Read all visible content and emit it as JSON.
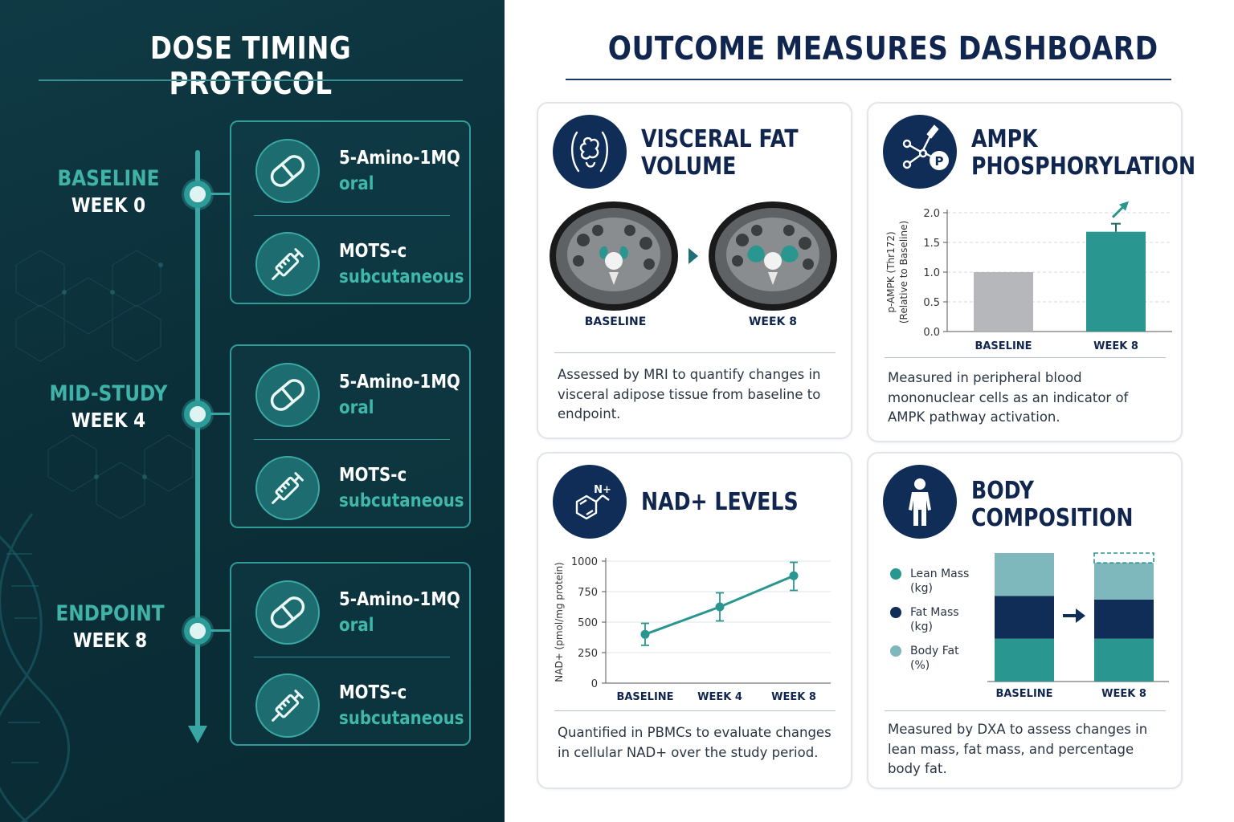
{
  "left": {
    "title": "DOSE TIMING PROTOCOL",
    "phases": [
      {
        "name": "BASELINE",
        "week": "WEEK 0",
        "doses": [
          {
            "name": "5-Amino-1MQ",
            "route": "oral",
            "icon": "capsule-icon"
          },
          {
            "name": "MOTS-c",
            "route": "subcutaneous",
            "icon": "syringe-icon"
          }
        ]
      },
      {
        "name": "MID-STUDY",
        "week": "WEEK 4",
        "doses": [
          {
            "name": "5-Amino-1MQ",
            "route": "oral",
            "icon": "capsule-icon"
          },
          {
            "name": "MOTS-c",
            "route": "subcutaneous",
            "icon": "syringe-icon"
          }
        ]
      },
      {
        "name": "ENDPOINT",
        "week": "WEEK 8",
        "doses": [
          {
            "name": "5-Amino-1MQ",
            "route": "oral",
            "icon": "capsule-icon"
          },
          {
            "name": "MOTS-c",
            "route": "subcutaneous",
            "icon": "syringe-icon"
          }
        ]
      }
    ]
  },
  "right": {
    "title": "OUTCOME MEASURES DASHBOARD",
    "cards": {
      "visceral": {
        "title_line1": "VISCERAL FAT",
        "title_line2": "VOLUME",
        "icon": "abdomen-icon",
        "label_before": "BASELINE",
        "label_after": "WEEK 8",
        "description": "Assessed by MRI to quantify changes in visceral adipose tissue from baseline to endpoint."
      },
      "ampk": {
        "title_line1": "AMPK",
        "title_line2": "PHOSPHORYLATION",
        "icon": "phospho-molecule-icon",
        "description": "Measured in peripheral blood mononuclear cells as an indicator of AMPK pathway activation."
      },
      "nad": {
        "title_line1": "NAD+ LEVELS",
        "icon": "nad-molecule-icon",
        "icon_label": "N+",
        "description": "Quantified in PBMCs to evaluate changes in cellular NAD+ over the study period."
      },
      "body": {
        "title_line1": "BODY",
        "title_line2": "COMPOSITION",
        "icon": "person-icon",
        "description": "Measured by DXA to assess changes in lean mass, fat mass, and percentage body fat."
      }
    }
  },
  "chart_data": [
    {
      "id": "ampk",
      "type": "bar",
      "categories": [
        "BASELINE",
        "WEEK 8"
      ],
      "values": [
        1.0,
        1.68
      ],
      "ylabel": "p-AMPK (Thr172)\n(Relative to Baseline)",
      "ylim": [
        0,
        2.0
      ],
      "yticks": [
        "0.0",
        "0.5",
        "1.0",
        "1.5",
        "2.0"
      ],
      "colors": [
        "#b5b7ba",
        "#2a9690"
      ],
      "grid": true
    },
    {
      "id": "nad",
      "type": "line",
      "categories": [
        "BASELINE",
        "WEEK 4",
        "WEEK 8"
      ],
      "values": [
        400,
        625,
        880
      ],
      "error": [
        [
          310,
          490
        ],
        [
          510,
          740
        ],
        [
          760,
          990
        ]
      ],
      "ylabel": "NAD+ (pmol/mg protein)",
      "ylim": [
        0,
        1000
      ],
      "yticks": [
        "0",
        "250",
        "500",
        "750",
        "1000"
      ],
      "color": "#2a9690",
      "grid": true
    },
    {
      "id": "body",
      "type": "bar",
      "stacked": true,
      "categories": [
        "BASELINE",
        "WEEK 8"
      ],
      "series": [
        {
          "name": "Lean Mass",
          "unit": "(kg)",
          "color": "#2a9690",
          "values": [
            35,
            35
          ]
        },
        {
          "name": "Fat Mass",
          "unit": "(kg)",
          "color": "#0f2d57",
          "values": [
            35,
            32
          ]
        },
        {
          "name": "Body Fat",
          "unit": "(%)",
          "color": "#7fb8bc",
          "values": [
            35,
            30
          ]
        }
      ],
      "legend": "left"
    }
  ]
}
